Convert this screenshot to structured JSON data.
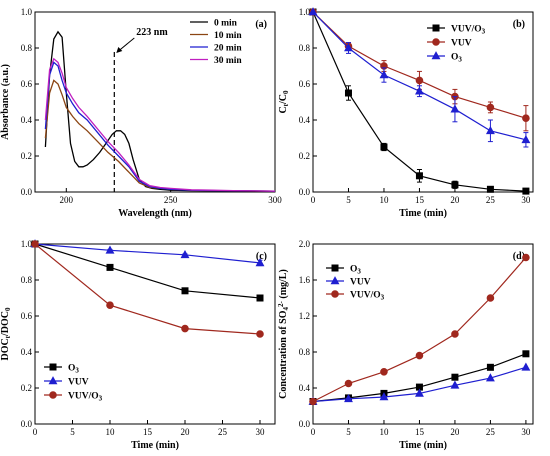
{
  "chart_data": [
    {
      "type": "line",
      "panel_label": "(a)",
      "xlabel": "Wavelength (nm)",
      "ylabel": "Absorbance (a.u.)",
      "xlim": [
        185,
        300
      ],
      "ylim": [
        0,
        1.0
      ],
      "xticks": [
        200,
        250,
        300
      ],
      "yticks": [
        0.0,
        0.2,
        0.4,
        0.6,
        0.8,
        1.0
      ],
      "grid": false,
      "legend": "top-right",
      "annotation": {
        "text": "223 nm",
        "x": 223
      },
      "series": [
        {
          "name": "0 min",
          "color": "#000000",
          "x": [
            190,
            192,
            194,
            196,
            198,
            200,
            202,
            204,
            206,
            208,
            210,
            213,
            216,
            219,
            222,
            224,
            226,
            228,
            230,
            232,
            235,
            238,
            241,
            245,
            250,
            260,
            270,
            280,
            290,
            300
          ],
          "y": [
            0.25,
            0.65,
            0.85,
            0.89,
            0.86,
            0.55,
            0.27,
            0.17,
            0.14,
            0.14,
            0.15,
            0.18,
            0.22,
            0.27,
            0.32,
            0.34,
            0.34,
            0.32,
            0.27,
            0.18,
            0.07,
            0.03,
            0.02,
            0.015,
            0.01,
            0.008,
            0.007,
            0.006,
            0.005,
            0.005
          ]
        },
        {
          "name": "10 min",
          "color": "#8b4513",
          "x": [
            190,
            192,
            194,
            196,
            198,
            200,
            203,
            206,
            210,
            215,
            220,
            225,
            230,
            235,
            240,
            245,
            250,
            260,
            270,
            280,
            290,
            300
          ],
          "y": [
            0.3,
            0.55,
            0.62,
            0.6,
            0.54,
            0.47,
            0.42,
            0.38,
            0.34,
            0.28,
            0.22,
            0.17,
            0.11,
            0.05,
            0.025,
            0.02,
            0.015,
            0.01,
            0.008,
            0.007,
            0.006,
            0.005
          ]
        },
        {
          "name": "20 min",
          "color": "#1f1fd0",
          "x": [
            190,
            192,
            194,
            196,
            198,
            200,
            203,
            206,
            210,
            215,
            220,
            225,
            230,
            235,
            240,
            245,
            250,
            260,
            270,
            280,
            290,
            300
          ],
          "y": [
            0.35,
            0.65,
            0.72,
            0.7,
            0.62,
            0.55,
            0.49,
            0.44,
            0.4,
            0.33,
            0.26,
            0.2,
            0.14,
            0.06,
            0.03,
            0.02,
            0.015,
            0.01,
            0.008,
            0.007,
            0.006,
            0.005
          ]
        },
        {
          "name": "30 min",
          "color": "#c01fc0",
          "x": [
            190,
            192,
            194,
            196,
            198,
            200,
            203,
            206,
            210,
            215,
            220,
            225,
            230,
            235,
            240,
            245,
            250,
            260,
            270,
            280,
            290,
            300
          ],
          "y": [
            0.4,
            0.68,
            0.74,
            0.72,
            0.66,
            0.58,
            0.52,
            0.47,
            0.42,
            0.35,
            0.28,
            0.22,
            0.15,
            0.07,
            0.035,
            0.025,
            0.02,
            0.012,
            0.01,
            0.008,
            0.006,
            0.005
          ]
        }
      ]
    },
    {
      "type": "line",
      "panel_label": "(b)",
      "xlabel": "Time (min)",
      "ylabel": "Ct/C0",
      "ylabel_main": "C",
      "ylabel_sub1": "t",
      "ylabel_mid": "/C",
      "ylabel_sub2": "0",
      "xlim": [
        0,
        31
      ],
      "ylim": [
        0,
        1.0
      ],
      "xticks": [
        0,
        5,
        10,
        15,
        20,
        25,
        30
      ],
      "yticks": [
        0.0,
        0.2,
        0.4,
        0.6,
        0.8,
        1.0
      ],
      "grid": false,
      "legend": "top-right",
      "series": [
        {
          "name": "VUV/O3",
          "name_main": "VUV/O",
          "name_sub": "3",
          "color": "#000000",
          "marker": "square",
          "x": [
            0,
            5,
            10,
            15,
            20,
            25,
            30
          ],
          "y": [
            1.0,
            0.55,
            0.25,
            0.09,
            0.04,
            0.015,
            0.005
          ],
          "err": [
            0,
            0.04,
            0.02,
            0.035,
            0.02,
            0.005,
            0.003
          ]
        },
        {
          "name": "VUV",
          "name_main": "VUV",
          "name_sub": "",
          "color": "#a0281e",
          "marker": "circle",
          "x": [
            0,
            5,
            10,
            15,
            20,
            25,
            30
          ],
          "y": [
            1.0,
            0.81,
            0.7,
            0.62,
            0.53,
            0.47,
            0.41
          ],
          "err": [
            0,
            0.02,
            0.03,
            0.05,
            0.04,
            0.03,
            0.07
          ]
        },
        {
          "name": "O3",
          "name_main": "O",
          "name_sub": "3",
          "color": "#1f1fd0",
          "marker": "triangle",
          "x": [
            0,
            5,
            10,
            15,
            20,
            25,
            30
          ],
          "y": [
            1.0,
            0.8,
            0.65,
            0.56,
            0.46,
            0.34,
            0.29
          ],
          "err": [
            0,
            0.03,
            0.04,
            0.03,
            0.07,
            0.06,
            0.04
          ]
        }
      ]
    },
    {
      "type": "line",
      "panel_label": "(c)",
      "xlabel": "Time  (min)",
      "ylabel": "DOCt/DOC0",
      "ylabel_main": "DOC",
      "ylabel_sub1": "t",
      "ylabel_mid": "/DOC",
      "ylabel_sub2": "0",
      "xlim": [
        0,
        32
      ],
      "ylim": [
        0.0,
        1.0
      ],
      "xticks": [
        0,
        5,
        10,
        15,
        20,
        25,
        30
      ],
      "yticks": [
        0.0,
        0.2,
        0.4,
        0.6,
        0.8,
        1.0
      ],
      "grid": false,
      "legend": "lower-left",
      "series": [
        {
          "name": "O3",
          "name_main": "O",
          "name_sub": "3",
          "color": "#000000",
          "marker": "square",
          "x": [
            0,
            10,
            20,
            30
          ],
          "y": [
            1.0,
            0.87,
            0.74,
            0.7
          ],
          "err": [
            0,
            0.01,
            0.01,
            0.015
          ]
        },
        {
          "name": "VUV",
          "name_main": "VUV",
          "name_sub": "",
          "color": "#1f1fd0",
          "marker": "triangle",
          "x": [
            0,
            10,
            20,
            30
          ],
          "y": [
            1.0,
            0.965,
            0.94,
            0.895
          ],
          "err": [
            0,
            0.005,
            0.005,
            0.015
          ]
        },
        {
          "name": "VUV/O3",
          "name_main": "VUV/O",
          "name_sub": "3",
          "color": "#a0281e",
          "marker": "circle",
          "x": [
            0,
            10,
            20,
            30
          ],
          "y": [
            1.0,
            0.66,
            0.53,
            0.5
          ],
          "err": [
            0,
            0.01,
            0.01,
            0.01
          ]
        }
      ]
    },
    {
      "type": "line",
      "panel_label": "(d)",
      "xlabel": "Time (min)",
      "ylabel": "Concentration of SO4 2- (mg/L)",
      "ylabel_main": "Concentration of SO",
      "ylabel_sub1": "4",
      "ylabel_sup": "2-",
      "ylabel_end": " (mg/L)",
      "xlim": [
        0,
        31
      ],
      "ylim": [
        0.0,
        2.0
      ],
      "xticks": [
        0,
        5,
        10,
        15,
        20,
        25,
        30
      ],
      "yticks": [
        0.0,
        0.4,
        0.8,
        1.2,
        1.6,
        2.0
      ],
      "grid": false,
      "legend": "top-left",
      "series": [
        {
          "name": "O3",
          "name_main": "O",
          "name_sub": "3",
          "color": "#000000",
          "marker": "square",
          "x": [
            0,
            5,
            10,
            15,
            20,
            25,
            30
          ],
          "y": [
            0.25,
            0.29,
            0.34,
            0.41,
            0.52,
            0.63,
            0.78
          ]
        },
        {
          "name": "VUV",
          "name_main": "VUV",
          "name_sub": "",
          "color": "#1f1fd0",
          "marker": "triangle",
          "x": [
            0,
            5,
            10,
            15,
            20,
            25,
            30
          ],
          "y": [
            0.25,
            0.28,
            0.3,
            0.34,
            0.43,
            0.51,
            0.63
          ]
        },
        {
          "name": "VUV/O3",
          "name_main": "VUV/O",
          "name_sub": "3",
          "color": "#a0281e",
          "marker": "circle",
          "x": [
            0,
            5,
            10,
            15,
            20,
            25,
            30
          ],
          "y": [
            0.25,
            0.45,
            0.58,
            0.76,
            1.0,
            1.4,
            1.85
          ]
        }
      ]
    }
  ]
}
